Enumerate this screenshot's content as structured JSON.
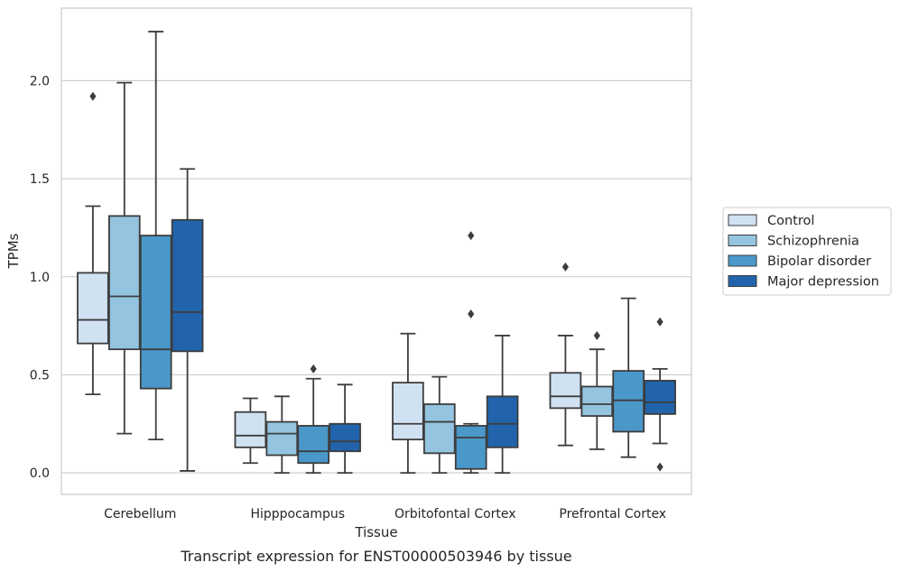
{
  "caption": "Transcript expression for ENST00000503946 by tissue",
  "chart_data": {
    "type": "box",
    "xlabel": "Tissue",
    "ylabel": "TPMs",
    "ylim": [
      -0.11,
      2.37
    ],
    "yticks": [
      0.0,
      0.5,
      1.0,
      1.5,
      2.0
    ],
    "ytick_labels": [
      "0.0",
      "0.5",
      "1.0",
      "1.5",
      "2.0"
    ],
    "grid": "horizontal",
    "legend_position": "right",
    "categories": [
      "Cerebellum",
      "Hipppocampus",
      "Orbitofontal Cortex",
      "Prefrontal Cortex"
    ],
    "series": [
      {
        "name": "Control",
        "color": "#d0e1f2",
        "boxes": [
          {
            "whislo": 0.4,
            "q1": 0.66,
            "med": 0.78,
            "q3": 1.02,
            "whishi": 1.36,
            "fliers": [
              1.92
            ]
          },
          {
            "whislo": 0.05,
            "q1": 0.13,
            "med": 0.19,
            "q3": 0.31,
            "whishi": 0.38,
            "fliers": []
          },
          {
            "whislo": 0.0,
            "q1": 0.17,
            "med": 0.25,
            "q3": 0.46,
            "whishi": 0.71,
            "fliers": []
          },
          {
            "whislo": 0.14,
            "q1": 0.33,
            "med": 0.39,
            "q3": 0.51,
            "whishi": 0.7,
            "fliers": [
              1.05
            ]
          }
        ]
      },
      {
        "name": "Schizophrenia",
        "color": "#94c4df",
        "boxes": [
          {
            "whislo": 0.2,
            "q1": 0.63,
            "med": 0.9,
            "q3": 1.31,
            "whishi": 1.99,
            "fliers": []
          },
          {
            "whislo": 0.0,
            "q1": 0.09,
            "med": 0.2,
            "q3": 0.26,
            "whishi": 0.39,
            "fliers": []
          },
          {
            "whislo": 0.0,
            "q1": 0.1,
            "med": 0.26,
            "q3": 0.35,
            "whishi": 0.49,
            "fliers": []
          },
          {
            "whislo": 0.12,
            "q1": 0.29,
            "med": 0.35,
            "q3": 0.44,
            "whishi": 0.63,
            "fliers": [
              0.7
            ]
          }
        ]
      },
      {
        "name": "Bipolar disorder",
        "color": "#4a98c9",
        "boxes": [
          {
            "whislo": 0.17,
            "q1": 0.43,
            "med": 0.63,
            "q3": 1.21,
            "whishi": 2.25,
            "fliers": []
          },
          {
            "whislo": 0.0,
            "q1": 0.05,
            "med": 0.11,
            "q3": 0.24,
            "whishi": 0.48,
            "fliers": [
              0.53
            ]
          },
          {
            "whislo": 0.0,
            "q1": 0.02,
            "med": 0.18,
            "q3": 0.24,
            "whishi": 0.25,
            "fliers": [
              0.81,
              1.21
            ]
          },
          {
            "whislo": 0.08,
            "q1": 0.21,
            "med": 0.37,
            "q3": 0.52,
            "whishi": 0.89,
            "fliers": []
          }
        ]
      },
      {
        "name": "Major depression",
        "color": "#2164ab",
        "boxes": [
          {
            "whislo": 0.01,
            "q1": 0.62,
            "med": 0.82,
            "q3": 1.29,
            "whishi": 1.55,
            "fliers": []
          },
          {
            "whislo": 0.0,
            "q1": 0.11,
            "med": 0.16,
            "q3": 0.25,
            "whishi": 0.45,
            "fliers": []
          },
          {
            "whislo": 0.0,
            "q1": 0.13,
            "med": 0.25,
            "q3": 0.39,
            "whishi": 0.7,
            "fliers": []
          },
          {
            "whislo": 0.15,
            "q1": 0.3,
            "med": 0.36,
            "q3": 0.47,
            "whishi": 0.53,
            "fliers": [
              0.77,
              0.03
            ]
          }
        ]
      }
    ]
  }
}
